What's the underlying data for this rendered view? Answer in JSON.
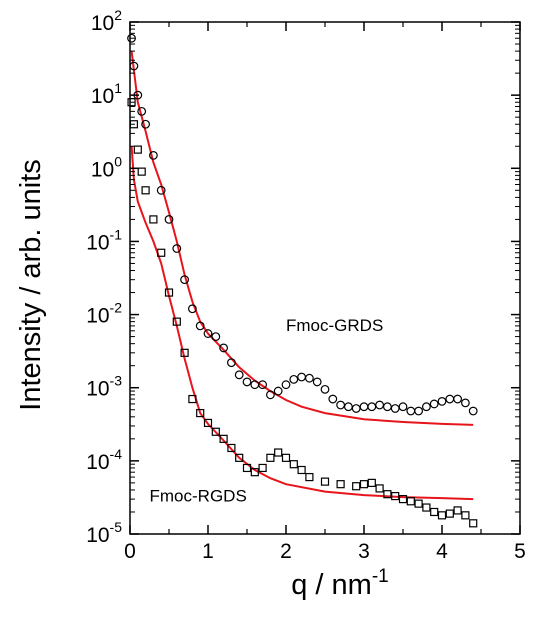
{
  "chart_data": {
    "type": "scatter",
    "y_scale": "log",
    "xlabel": "q / nm",
    "xlabel_superscript": "-1",
    "ylabel": "Intensity / arb. units",
    "xlim": [
      0,
      5
    ],
    "ylim": [
      1e-05,
      100
    ],
    "x_ticks": [
      0,
      1,
      2,
      3,
      4,
      5
    ],
    "y_tick_base": "10",
    "y_tick_exponents": [
      "-5",
      "-4",
      "-3",
      "-2",
      "-1",
      "0",
      "1",
      "2"
    ],
    "grid": false,
    "series": [
      {
        "name": "Fmoc-GRDS",
        "marker": "circle",
        "points": [
          [
            0.02,
            60
          ],
          [
            0.05,
            25
          ],
          [
            0.1,
            10
          ],
          [
            0.15,
            6
          ],
          [
            0.2,
            4
          ],
          [
            0.3,
            1.5
          ],
          [
            0.4,
            0.5
          ],
          [
            0.5,
            0.2
          ],
          [
            0.6,
            0.08
          ],
          [
            0.7,
            0.03
          ],
          [
            0.8,
            0.012
          ],
          [
            0.9,
            0.007
          ],
          [
            1.0,
            0.0055
          ],
          [
            1.1,
            0.005
          ],
          [
            1.2,
            0.0035
          ],
          [
            1.3,
            0.0022
          ],
          [
            1.4,
            0.0015
          ],
          [
            1.5,
            0.0012
          ],
          [
            1.6,
            0.0011
          ],
          [
            1.7,
            0.0011
          ],
          [
            1.8,
            0.0008
          ],
          [
            1.9,
            0.0009
          ],
          [
            2.0,
            0.0011
          ],
          [
            2.1,
            0.0013
          ],
          [
            2.2,
            0.0014
          ],
          [
            2.3,
            0.00135
          ],
          [
            2.4,
            0.0012
          ],
          [
            2.5,
            0.00095
          ],
          [
            2.6,
            0.0007
          ],
          [
            2.7,
            0.00058
          ],
          [
            2.8,
            0.00055
          ],
          [
            2.9,
            0.00052
          ],
          [
            3.0,
            0.00055
          ],
          [
            3.1,
            0.00055
          ],
          [
            3.2,
            0.00058
          ],
          [
            3.3,
            0.00055
          ],
          [
            3.4,
            0.00052
          ],
          [
            3.5,
            0.00055
          ],
          [
            3.6,
            0.00048
          ],
          [
            3.7,
            0.00048
          ],
          [
            3.8,
            0.00055
          ],
          [
            3.9,
            0.0006
          ],
          [
            4.0,
            0.00065
          ],
          [
            4.1,
            0.0007
          ],
          [
            4.2,
            0.0007
          ],
          [
            4.3,
            0.00062
          ],
          [
            4.4,
            0.00048
          ]
        ]
      },
      {
        "name": "Fmoc-RGDS",
        "marker": "square",
        "points": [
          [
            0.02,
            8
          ],
          [
            0.05,
            4
          ],
          [
            0.1,
            1.8
          ],
          [
            0.15,
            0.9
          ],
          [
            0.2,
            0.5
          ],
          [
            0.3,
            0.2
          ],
          [
            0.4,
            0.07
          ],
          [
            0.5,
            0.02
          ],
          [
            0.6,
            0.008
          ],
          [
            0.7,
            0.003
          ],
          [
            0.8,
            0.0007
          ],
          [
            0.9,
            0.00045
          ],
          [
            1.0,
            0.00033
          ],
          [
            1.1,
            0.00025
          ],
          [
            1.2,
            0.0002
          ],
          [
            1.3,
            0.00015
          ],
          [
            1.4,
            0.00011
          ],
          [
            1.5,
            8e-05
          ],
          [
            1.6,
            7e-05
          ],
          [
            1.7,
            8e-05
          ],
          [
            1.8,
            0.00011
          ],
          [
            1.9,
            0.00013
          ],
          [
            2.0,
            0.00011
          ],
          [
            2.1,
            9e-05
          ],
          [
            2.2,
            7.5e-05
          ],
          [
            2.3,
            6e-05
          ],
          [
            2.5,
            5.2e-05
          ],
          [
            2.7,
            4.8e-05
          ],
          [
            2.9,
            4.5e-05
          ],
          [
            3.0,
            4.8e-05
          ],
          [
            3.1,
            5e-05
          ],
          [
            3.2,
            4.2e-05
          ],
          [
            3.3,
            3.5e-05
          ],
          [
            3.4,
            3.3e-05
          ],
          [
            3.5,
            3e-05
          ],
          [
            3.6,
            2.8e-05
          ],
          [
            3.7,
            2.6e-05
          ],
          [
            3.8,
            2.3e-05
          ],
          [
            3.9,
            2e-05
          ],
          [
            4.0,
            1.8e-05
          ],
          [
            4.1,
            1.9e-05
          ],
          [
            4.2,
            2.1e-05
          ],
          [
            4.3,
            1.8e-05
          ],
          [
            4.4,
            1.4e-05
          ]
        ]
      }
    ],
    "fits": [
      {
        "color": "#e8141b",
        "points": [
          [
            0.02,
            40
          ],
          [
            0.1,
            8
          ],
          [
            0.2,
            3.2
          ],
          [
            0.3,
            1.2
          ],
          [
            0.4,
            0.6
          ],
          [
            0.5,
            0.25
          ],
          [
            0.6,
            0.1
          ],
          [
            0.7,
            0.035
          ],
          [
            0.8,
            0.015
          ],
          [
            0.9,
            0.008
          ],
          [
            1.0,
            0.0055
          ],
          [
            1.2,
            0.0033
          ],
          [
            1.4,
            0.0019
          ],
          [
            1.6,
            0.00125
          ],
          [
            1.8,
            0.0009
          ],
          [
            2.0,
            0.00068
          ],
          [
            2.2,
            0.00055
          ],
          [
            2.5,
            0.00045
          ],
          [
            3.0,
            0.00037
          ],
          [
            3.5,
            0.00034
          ],
          [
            4.0,
            0.00032
          ],
          [
            4.4,
            0.00031
          ]
        ]
      },
      {
        "color": "#e8141b",
        "points": [
          [
            0.02,
            2
          ],
          [
            0.05,
            0.7
          ],
          [
            0.1,
            0.35
          ],
          [
            0.2,
            0.18
          ],
          [
            0.3,
            0.1
          ],
          [
            0.4,
            0.05
          ],
          [
            0.5,
            0.018
          ],
          [
            0.6,
            0.007
          ],
          [
            0.7,
            0.0025
          ],
          [
            0.8,
            0.001
          ],
          [
            0.9,
            0.00045
          ],
          [
            1.0,
            0.00032
          ],
          [
            1.2,
            0.00019
          ],
          [
            1.4,
            0.00011
          ],
          [
            1.6,
            7.5e-05
          ],
          [
            1.8,
            5.8e-05
          ],
          [
            2.0,
            4.8e-05
          ],
          [
            2.5,
            3.8e-05
          ],
          [
            3.0,
            3.4e-05
          ],
          [
            3.5,
            3.2e-05
          ],
          [
            4.0,
            3.1e-05
          ],
          [
            4.4,
            3e-05
          ]
        ]
      }
    ],
    "annotations": [
      {
        "text": "Fmoc-GRDS",
        "x": 2.0,
        "y": 0.006
      },
      {
        "text": "Fmoc-RGDS",
        "x": 0.25,
        "y": 2.8e-05
      }
    ]
  }
}
